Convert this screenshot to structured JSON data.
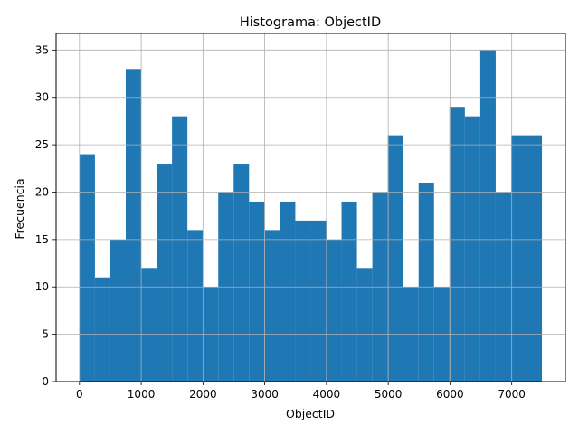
{
  "chart_data": {
    "type": "bar",
    "title": "Histograma: ObjectID",
    "xlabel": "ObjectID",
    "ylabel": "Frecuencia",
    "xlim": [
      -378,
      7869
    ],
    "ylim": [
      0,
      36.75
    ],
    "grid": true,
    "bar_color": "#1f77b4",
    "grid_color": "#b0b0b0",
    "xticks": [
      0,
      1000,
      2000,
      3000,
      4000,
      5000,
      6000,
      7000
    ],
    "xtick_labels": [
      "0",
      "1000",
      "2000",
      "3000",
      "4000",
      "5000",
      "6000",
      "7000"
    ],
    "yticks": [
      0,
      5,
      10,
      15,
      20,
      25,
      30,
      35
    ],
    "ytick_labels": [
      "0",
      "5",
      "10",
      "15",
      "20",
      "25",
      "30",
      "35"
    ],
    "bin_start": 1,
    "bin_width": 249.6,
    "values": [
      24,
      11,
      15,
      33,
      12,
      23,
      28,
      16,
      10,
      20,
      23,
      19,
      16,
      19,
      17,
      17,
      15,
      19,
      12,
      20,
      26,
      10,
      21,
      10,
      29,
      28,
      35,
      20,
      26,
      26
    ]
  }
}
